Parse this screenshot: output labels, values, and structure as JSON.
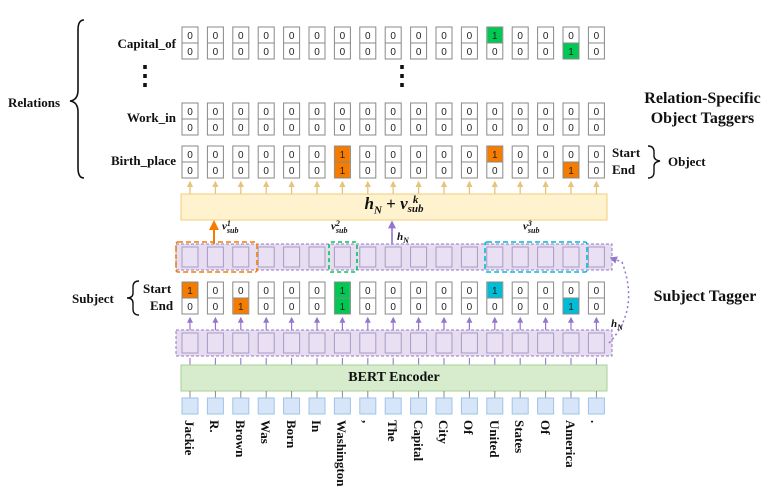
{
  "tokens": [
    "Jackie",
    "R.",
    "Brown",
    "Was",
    "Born",
    "In",
    "Washington",
    ",",
    "The",
    "Capital",
    "City",
    "Of",
    "United",
    "States",
    "Of",
    "America",
    "."
  ],
  "subject_tagger": {
    "title": "Subject Tagger",
    "brace_label": "Subject",
    "start_label": "Start",
    "end_label": "End",
    "start": [
      1,
      0,
      0,
      0,
      0,
      0,
      1,
      0,
      0,
      0,
      0,
      0,
      1,
      0,
      0,
      0,
      0
    ],
    "end": [
      0,
      0,
      1,
      0,
      0,
      0,
      1,
      0,
      0,
      0,
      0,
      0,
      0,
      0,
      0,
      1,
      0
    ]
  },
  "encoder": {
    "label": "BERT Encoder"
  },
  "relations": {
    "title_line1": "Relation-Specific",
    "title_line2": "Object Taggers",
    "brace_label": "Relations",
    "ellipsis": "⋮",
    "rows": [
      {
        "name": "Capital_of",
        "start": [
          0,
          0,
          0,
          0,
          0,
          0,
          0,
          0,
          0,
          0,
          0,
          0,
          1,
          0,
          0,
          0,
          0
        ],
        "end": [
          0,
          0,
          0,
          0,
          0,
          0,
          0,
          0,
          0,
          0,
          0,
          0,
          0,
          0,
          0,
          1,
          0
        ]
      },
      {
        "name": "Work_in",
        "start": [
          0,
          0,
          0,
          0,
          0,
          0,
          0,
          0,
          0,
          0,
          0,
          0,
          0,
          0,
          0,
          0,
          0
        ],
        "end": [
          0,
          0,
          0,
          0,
          0,
          0,
          0,
          0,
          0,
          0,
          0,
          0,
          0,
          0,
          0,
          0,
          0
        ]
      },
      {
        "name": "Birth_place",
        "start": [
          0,
          0,
          0,
          0,
          0,
          0,
          1,
          0,
          0,
          0,
          0,
          0,
          1,
          0,
          0,
          0,
          0
        ],
        "end": [
          0,
          0,
          0,
          0,
          0,
          0,
          1,
          0,
          0,
          0,
          0,
          0,
          0,
          0,
          0,
          1,
          0
        ]
      }
    ],
    "object_brace": {
      "start_label": "Start",
      "end_label": "End",
      "label": "Object"
    }
  },
  "formula": {
    "h": "h",
    "h_sub": "N",
    "plus": " + ",
    "v": "v",
    "v_sup": "k",
    "v_sub": "sub"
  },
  "annotations": {
    "v1": {
      "v": "v",
      "sup": "1",
      "sub": "sub"
    },
    "v2": {
      "v": "v",
      "sup": "2",
      "sub": "sub"
    },
    "v3": {
      "v": "v",
      "sup": "3",
      "sub": "sub"
    },
    "hN": {
      "h": "h",
      "sub": "N"
    }
  },
  "colors": {
    "orange": "#f57c00",
    "green": "#00c853",
    "teal": "#00bcd4",
    "purple": "#9575cd",
    "purple_fill": "#e6def0",
    "formula_fill": "#fff3cf",
    "formula_border": "#f0cc7a",
    "bert_fill": "#d6eccd",
    "bert_border": "#a8cf96",
    "token_fill": "#d6e6f8",
    "token_border": "#9fc3e8",
    "cell_border": "#888888",
    "arrow_gold": "#e8c47a"
  }
}
